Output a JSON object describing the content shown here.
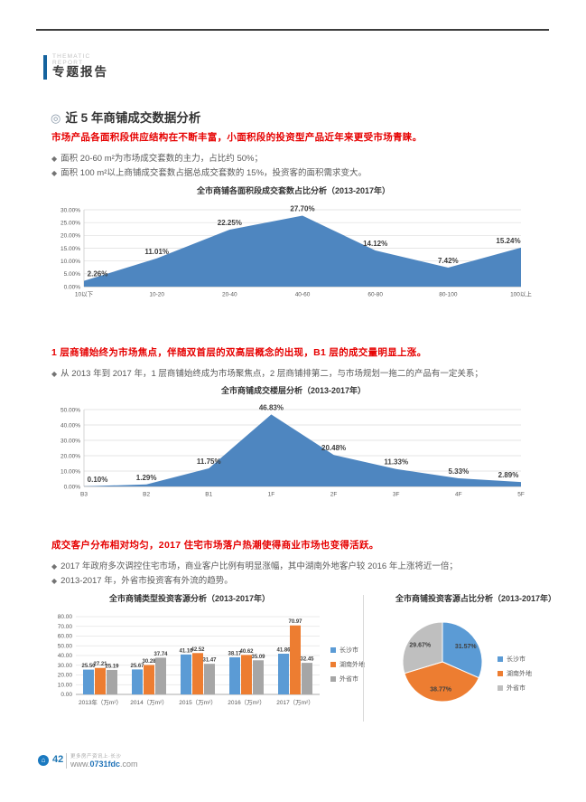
{
  "page": {
    "header": {
      "eyebrow": "THEMATIC REPORT",
      "title": "专题报告"
    },
    "section_heading": {
      "marker": "◎",
      "text": "近 5 年商铺成交数据分析"
    },
    "bullet_marker": "◆",
    "blocks": [
      {
        "headline": "市场产品各面积段供应结构在不断丰富，小面积段的投资型产品近年来更受市场青睐。",
        "bullets": [
          "面积 20-60 m²为市场成交套数的主力，占比约 50%；",
          "面积 100 m²以上商铺成交套数占据总成交套数的 15%，投资客的面积需求变大。"
        ]
      },
      {
        "headline": "1 层商铺始终为市场焦点，伴随双首层的双高层概念的出现，B1 层的成交量明显上涨。",
        "bullets": [
          "从 2013 年到 2017 年，1 层商铺始终成为市场聚焦点，2 层商铺排第二，与市场规划一拖二的产品有一定关系；"
        ]
      },
      {
        "headline": "成交客户分布相对均匀，2017 住宅市场落户热潮使得商业市场也变得活跃。",
        "bullets": [
          "2017 年政府多次调控住宅市场，商业客户比例有明显涨幅，其中湖南外地客户较 2016 年上涨将近一倍；",
          "2013-2017 年，外省市投资客有外流的趋势。"
        ]
      }
    ],
    "footer": {
      "page_number": "42",
      "tagline": "更多房产资讯上·长沙",
      "url_prefix": "www.",
      "url_domain": "0731fdc",
      "url_suffix": ".com"
    }
  },
  "colors": {
    "accent_blue": "#15639e",
    "headline_red": "#e60000",
    "area_blue": "#4e86c0",
    "bar_blue": "#5b9bd5",
    "bar_orange": "#ed7d31",
    "bar_gray": "#a6a6a6",
    "pie_gray": "#bfbfbf"
  },
  "chart_data": [
    {
      "type": "area",
      "title": "全市商铺各面积段成交套数占比分析（2013-2017年）",
      "categories": [
        "10以下",
        "10-20",
        "20-40",
        "40-60",
        "60-80",
        "80-100",
        "100以上"
      ],
      "values": [
        2.26,
        11.01,
        22.25,
        27.7,
        14.12,
        7.42,
        15.24
      ],
      "unit": "%",
      "ylim": [
        0,
        30
      ],
      "ytick_step": 5,
      "grid": true,
      "color": "#4e86c0"
    },
    {
      "type": "area",
      "title": "全市商铺成交楼层分析（2013-2017年）",
      "categories": [
        "B3",
        "B2",
        "B1",
        "1F",
        "2F",
        "3F",
        "4F",
        "5F"
      ],
      "values": [
        0.1,
        1.29,
        11.75,
        46.83,
        20.48,
        11.33,
        5.33,
        2.89
      ],
      "unit": "%",
      "ylim": [
        0,
        50
      ],
      "ytick_step": 10,
      "grid": true,
      "color": "#4e86c0"
    },
    {
      "type": "bar",
      "title": "全市商铺类型投资客源分析（2013-2017年）",
      "categories": [
        "2013年（万m²）",
        "2014（万m²）",
        "2015（万m²）",
        "2016（万m²）",
        "2017（万m²）"
      ],
      "series": [
        {
          "name": "长沙市",
          "color": "#5b9bd5",
          "values": [
            25.5,
            25.67,
            41.1,
            38.17,
            41.86
          ]
        },
        {
          "name": "湖南外地",
          "color": "#ed7d31",
          "values": [
            27.21,
            30.28,
            42.52,
            40.62,
            70.97
          ]
        },
        {
          "name": "外省市",
          "color": "#a6a6a6",
          "values": [
            25.19,
            37.74,
            31.47,
            35.09,
            32.45
          ]
        }
      ],
      "ylim": [
        0,
        80
      ],
      "ytick_step": 10,
      "grid": true,
      "legend_position": "right"
    },
    {
      "type": "pie",
      "title": "全市商铺投资客源占比分析（2013-2017年）",
      "slices": [
        {
          "name": "长沙市",
          "value": 31.57,
          "color": "#5b9bd5"
        },
        {
          "name": "湖南外地",
          "value": 38.77,
          "color": "#ed7d31"
        },
        {
          "name": "外省市",
          "value": 29.67,
          "color": "#bfbfbf"
        }
      ],
      "unit": "%",
      "legend_position": "right"
    }
  ]
}
